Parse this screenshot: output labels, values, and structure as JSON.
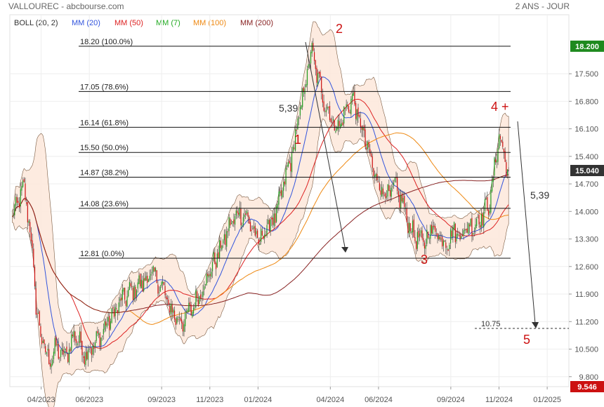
{
  "header": {
    "title": "VALLOUREC - abcbourse.com",
    "period": "2 ANS - JOUR"
  },
  "legend": [
    {
      "label": "BOLL (20, 2)",
      "color": "#333333"
    },
    {
      "label": "MM (20)",
      "color": "#3355dd"
    },
    {
      "label": "MM (50)",
      "color": "#dd2222"
    },
    {
      "label": "MM (7)",
      "color": "#22aa22"
    },
    {
      "label": "MM (100)",
      "color": "#ee8811"
    },
    {
      "label": "MM (200)",
      "color": "#882222"
    }
  ],
  "chart_data": {
    "type": "candlestick",
    "ylim": [
      9.546,
      19.0
    ],
    "y_ticks": [
      "9.800",
      "10.500",
      "11.200",
      "11.900",
      "12.600",
      "13.300",
      "14.000",
      "14.700",
      "15.400",
      "16.100",
      "16.800",
      "17.500"
    ],
    "x_tick_labels": [
      "04/2023",
      "06/2023",
      "09/2023",
      "11/2023",
      "01/2024",
      "04/2024",
      "06/2024",
      "09/2024",
      "11/2024",
      "01/2025"
    ],
    "x_ticks": [
      {
        "label": "04/2023",
        "month": 3
      },
      {
        "label": "06/2023",
        "month": 5
      },
      {
        "label": "09/2023",
        "month": 8
      },
      {
        "label": "11/2023",
        "month": 10
      },
      {
        "label": "01/2024",
        "month": 12
      },
      {
        "label": "04/2024",
        "month": 15
      },
      {
        "label": "06/2024",
        "month": 17
      },
      {
        "label": "09/2024",
        "month": 20
      },
      {
        "label": "11/2024",
        "month": 22
      },
      {
        "label": "01/2025",
        "month": 24
      }
    ],
    "price_path": [
      [
        1.8,
        13.8
      ],
      [
        2.0,
        14.2
      ],
      [
        2.3,
        14.6
      ],
      [
        2.6,
        13.2
      ],
      [
        2.8,
        11.5
      ],
      [
        3.0,
        10.8
      ],
      [
        3.3,
        10.2
      ],
      [
        3.6,
        10.5
      ],
      [
        4.0,
        10.3
      ],
      [
        4.4,
        10.9
      ],
      [
        4.8,
        10.4
      ],
      [
        5.2,
        10.6
      ],
      [
        5.6,
        11.0
      ],
      [
        6.0,
        11.4
      ],
      [
        6.4,
        11.8
      ],
      [
        6.8,
        12.0
      ],
      [
        7.2,
        12.2
      ],
      [
        7.6,
        12.4
      ],
      [
        8.0,
        12.1
      ],
      [
        8.3,
        11.6
      ],
      [
        8.6,
        11.3
      ],
      [
        8.9,
        11.2
      ],
      [
        9.2,
        11.5
      ],
      [
        9.5,
        11.8
      ],
      [
        9.8,
        12.2
      ],
      [
        10.1,
        12.6
      ],
      [
        10.4,
        13.0
      ],
      [
        10.8,
        13.6
      ],
      [
        11.2,
        14.0
      ],
      [
        11.6,
        13.8
      ],
      [
        12.0,
        13.2
      ],
      [
        12.4,
        13.6
      ],
      [
        12.8,
        14.0
      ],
      [
        13.1,
        14.8
      ],
      [
        13.4,
        15.4
      ],
      [
        13.7,
        16.4
      ],
      [
        14.0,
        17.4
      ],
      [
        14.2,
        18.1
      ],
      [
        14.4,
        17.6
      ],
      [
        14.7,
        16.9
      ],
      [
        15.0,
        16.4
      ],
      [
        15.3,
        16.1
      ],
      [
        15.6,
        16.5
      ],
      [
        15.9,
        16.9
      ],
      [
        16.2,
        16.3
      ],
      [
        16.5,
        15.7
      ],
      [
        16.8,
        15.0
      ],
      [
        17.1,
        14.6
      ],
      [
        17.4,
        14.4
      ],
      [
        17.7,
        14.6
      ],
      [
        18.0,
        14.2
      ],
      [
        18.3,
        13.6
      ],
      [
        18.6,
        13.3
      ],
      [
        18.9,
        13.2
      ],
      [
        19.2,
        13.6
      ],
      [
        19.5,
        13.4
      ],
      [
        19.8,
        13.2
      ],
      [
        20.1,
        13.5
      ],
      [
        20.4,
        13.4
      ],
      [
        20.7,
        13.6
      ],
      [
        21.0,
        13.7
      ],
      [
        21.3,
        13.9
      ],
      [
        21.6,
        14.2
      ],
      [
        21.8,
        15.0
      ],
      [
        22.0,
        16.0
      ],
      [
        22.2,
        15.4
      ],
      [
        22.4,
        15.04
      ]
    ],
    "fibonacci": [
      {
        "label": "18.20  (100.0%)",
        "value": 18.2
      },
      {
        "label": "17.05  (78.6%)",
        "value": 17.05
      },
      {
        "label": "16.14  (61.8%)",
        "value": 16.14
      },
      {
        "label": "15.50  (50.0%)",
        "value": 15.5
      },
      {
        "label": "14.87  (38.2%)",
        "value": 14.87
      },
      {
        "label": "14.08  (23.6%)",
        "value": 14.08
      },
      {
        "label": "12.81  (0.0%)",
        "value": 12.81
      }
    ],
    "target": {
      "label": "10.75",
      "value": 10.75
    },
    "wave_labels": [
      "1",
      "2",
      "3",
      "4 +",
      "5"
    ],
    "annotations": [
      "5,39",
      "5,39"
    ],
    "price_badges": [
      {
        "text": "18.200",
        "value": 18.2,
        "color": "#1e8a1e"
      },
      {
        "text": "15.040",
        "value": 15.04,
        "color": "#333333"
      },
      {
        "text": "9.546",
        "value": 9.546,
        "color": "#cc1111"
      }
    ]
  }
}
